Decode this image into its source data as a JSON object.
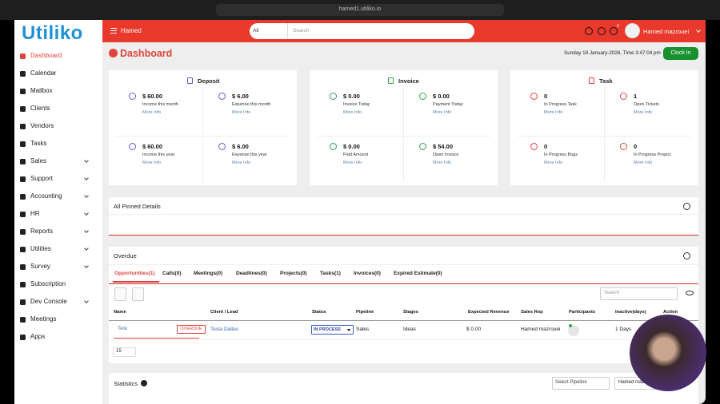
{
  "browser": {
    "url": "hamed1.utiliko.io"
  },
  "sidebar": {
    "logo": "Utiliko",
    "items": [
      {
        "label": "Dashboard",
        "has_submenu": false
      },
      {
        "label": "Calendar",
        "has_submenu": false
      },
      {
        "label": "Mailbox",
        "has_submenu": false
      },
      {
        "label": "Clients",
        "has_submenu": false
      },
      {
        "label": "Vendors",
        "has_submenu": false
      },
      {
        "label": "Tasks",
        "has_submenu": false
      },
      {
        "label": "Sales",
        "has_submenu": true
      },
      {
        "label": "Support",
        "has_submenu": true
      },
      {
        "label": "Accounting",
        "has_submenu": true
      },
      {
        "label": "HR",
        "has_submenu": true
      },
      {
        "label": "Reports",
        "has_submenu": true
      },
      {
        "label": "Utilities",
        "has_submenu": true
      },
      {
        "label": "Survey",
        "has_submenu": true
      },
      {
        "label": "Subscription",
        "has_submenu": false
      },
      {
        "label": "Dev Console",
        "has_submenu": true
      },
      {
        "label": "Meetings",
        "has_submenu": false
      },
      {
        "label": "Apps",
        "has_submenu": false
      }
    ]
  },
  "topbar": {
    "brand": "Hamed",
    "search_scope": "All",
    "search_placeholder": "Search",
    "notification_count": "0",
    "user": "Hamed mazrouei"
  },
  "header": {
    "title": "Dashboard",
    "datetime": "Sunday 18 January-2026, Time 3:47:04 pm",
    "button": "Clock In"
  },
  "cards": [
    {
      "title": "Deposit",
      "color": "#5a5fd0",
      "stats": [
        {
          "value": "$ 60.00",
          "label": "Income this month",
          "link": "More Info"
        },
        {
          "value": "$ 6.00",
          "label": "Expense this month",
          "link": "More Info"
        },
        {
          "value": "$ 60.00",
          "label": "Income this year",
          "link": "More Info"
        },
        {
          "value": "$ 6.00",
          "label": "Expense this year",
          "link": "More Info"
        }
      ]
    },
    {
      "title": "Invoice",
      "color": "#2f9e4f",
      "stats": [
        {
          "value": "$ 0.00",
          "label": "Invoice Today",
          "link": "More Info"
        },
        {
          "value": "$ 0.00",
          "label": "Payment Today",
          "link": "More Info"
        },
        {
          "value": "$ 0.00",
          "label": "Paid Amount",
          "link": "More Info"
        },
        {
          "value": "$ 54.00",
          "label": "Open Invoice",
          "link": "More Info"
        }
      ]
    },
    {
      "title": "Task",
      "color": "#e0443a",
      "stats": [
        {
          "value": "0",
          "label": "In Progress Task",
          "link": "More Info"
        },
        {
          "value": "1",
          "label": "Open Tickets",
          "link": "More Info"
        },
        {
          "value": "0",
          "label": "In Progress Bugs",
          "link": "More Info"
        },
        {
          "value": "0",
          "label": "In Progress Project",
          "link": "More Info"
        }
      ]
    }
  ],
  "pinned": {
    "title": "All Pinned Details"
  },
  "overdue": {
    "title": "Overdue",
    "tabs": [
      "Opportunities(1)",
      "Calls(0)",
      "Meetings(0)",
      "Deadlines(0)",
      "Projects(0)",
      "Tasks(1)",
      "Invoices(0)",
      "Expired Estimate(0)"
    ],
    "search_placeholder": "Search",
    "table": {
      "headers": [
        "Name",
        "Client / Lead",
        "Status",
        "Pipeline",
        "Stages",
        "Expected Revenue",
        "Sales Rep",
        "Participants",
        "Inactive(days)",
        "Action"
      ],
      "rows": [
        {
          "name": "Test",
          "badge": "OVERDUE",
          "client": "Tesla Dallas",
          "status": "IN PROCESS",
          "pipeline": "Sales",
          "stage": "Ideas",
          "revenue": "$ 0.00",
          "rep": "Hamed mazrouei",
          "inactive": "1 Days"
        }
      ]
    },
    "page_size": "15"
  },
  "statistics": {
    "title": "Statistics",
    "pipeline_select": "Select Pipeline",
    "user_select": "Hamed mazrouei"
  }
}
